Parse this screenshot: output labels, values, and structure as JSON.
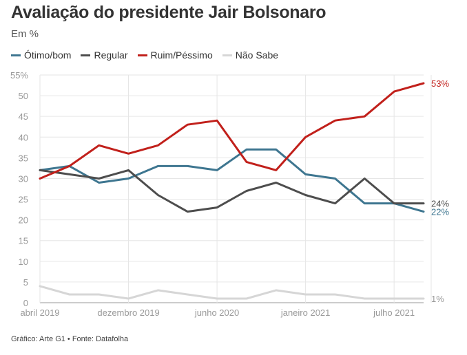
{
  "title": "Avaliação do presidente Jair Bolsonaro",
  "subtitle": "Em %",
  "source": "Gráfico: Arte G1 • Fonte: Datafolha",
  "chart_data": {
    "type": "line",
    "ylim": [
      0,
      55
    ],
    "y_ticks": [
      "0",
      "5",
      "10",
      "15",
      "20",
      "25",
      "30",
      "35",
      "40",
      "45",
      "50",
      "55%"
    ],
    "x_tick_labels": [
      "abril 2019",
      "dezembro 2019",
      "junho 2020",
      "janeiro 2021",
      "julho 2021"
    ],
    "x_tick_positions": [
      0,
      3,
      6,
      9,
      12
    ],
    "grid": true,
    "legend_placement": "top-left",
    "series": [
      {
        "name": "Ótimo/bom",
        "color": "#3e7690",
        "values": [
          32,
          33,
          29,
          30,
          33,
          33,
          32,
          37,
          37,
          31,
          30,
          24,
          24,
          22
        ],
        "end_label": "22%"
      },
      {
        "name": "Regular",
        "color": "#4d4d4d",
        "values": [
          32,
          31,
          30,
          32,
          26,
          22,
          23,
          27,
          29,
          26,
          24,
          30,
          24,
          24
        ],
        "end_label": "24%"
      },
      {
        "name": "Ruim/Péssimo",
        "color": "#c1201b",
        "values": [
          30,
          33,
          38,
          36,
          38,
          43,
          44,
          34,
          32,
          40,
          44,
          45,
          51,
          53
        ],
        "end_label": "53%"
      },
      {
        "name": "Não Sabe",
        "color": "#d6d6d6",
        "values": [
          4,
          2,
          2,
          1,
          3,
          2,
          1,
          1,
          3,
          2,
          2,
          1,
          1,
          1
        ],
        "end_label": "1%"
      }
    ]
  }
}
